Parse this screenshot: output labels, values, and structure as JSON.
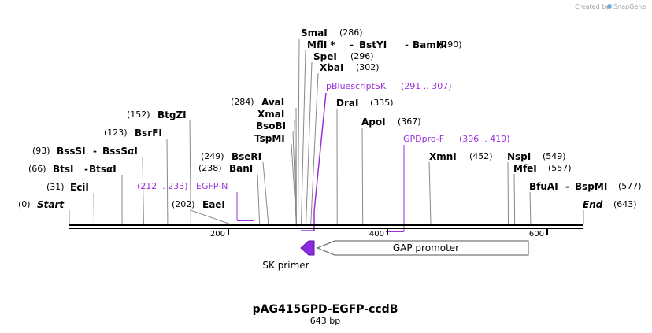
{
  "credit": {
    "prefix": "Created by",
    "brand": "SnapGene"
  },
  "map": {
    "name": "pAG415GPD-EGFP-ccdB",
    "length_label": "643 bp",
    "length_bp": 643
  },
  "ends": {
    "start": {
      "label": "Start",
      "pos_text": "(0)"
    },
    "end": {
      "label": "End",
      "pos_text": "(643)"
    }
  },
  "ticks": [
    {
      "bp": 200,
      "label": "200"
    },
    {
      "bp": 400,
      "label": "400"
    },
    {
      "bp": 600,
      "label": "600"
    }
  ],
  "sites": [
    {
      "name": "EciI",
      "pos_text": "(31)",
      "bp": 31
    },
    {
      "name": "BtsI",
      "name2": "BtsαI",
      "pos_text": "(66)",
      "bp": 66
    },
    {
      "name": "BssSI",
      "name2": "BssSαI",
      "pos_text": "(93)",
      "bp": 93
    },
    {
      "name": "BsrFI",
      "pos_text": "(123)",
      "bp": 123
    },
    {
      "name": "BtgZI",
      "pos_text": "(152)",
      "bp": 152
    },
    {
      "name": "EaeI",
      "pos_text": "(202)",
      "bp": 202
    },
    {
      "name": "BanI",
      "pos_text": "(238)",
      "bp": 238
    },
    {
      "name": "BseRI",
      "pos_text": "(249)",
      "bp": 249
    },
    {
      "name": "TspMI",
      "bp": 284
    },
    {
      "name": "BsoBI",
      "bp": 284
    },
    {
      "name": "XmaI",
      "bp": 284
    },
    {
      "name": "AvaI",
      "pos_text": "(284)",
      "bp": 284
    },
    {
      "name": "SmaI",
      "pos_text": "(286)",
      "bp": 286
    },
    {
      "name": "MflI *",
      "name2": "BstYI",
      "name3": "BamHI",
      "pos_text": "(290)",
      "bp": 290
    },
    {
      "name": "SpeI",
      "pos_text": "(296)",
      "bp": 296
    },
    {
      "name": "XbaI",
      "pos_text": "(302)",
      "bp": 302
    },
    {
      "name": "DraI",
      "pos_text": "(335)",
      "bp": 335
    },
    {
      "name": "ApoI",
      "pos_text": "(367)",
      "bp": 367
    },
    {
      "name": "XmnI",
      "pos_text": "(452)",
      "bp": 452
    },
    {
      "name": "NspI",
      "pos_text": "(549)",
      "bp": 549
    },
    {
      "name": "MfeI",
      "pos_text": "(557)",
      "bp": 557
    },
    {
      "name": "BfuAI",
      "name2": "BspMI",
      "pos_text": "(577)",
      "bp": 577
    }
  ],
  "primers": [
    {
      "name": "EGFP-N",
      "range_text": "(212 .. 233)",
      "start": 212,
      "end": 233
    },
    {
      "name": "pBluescriptSK",
      "range_text": "(291 .. 307)",
      "start": 291,
      "end": 307
    },
    {
      "name": "GPDpro-F",
      "range_text": "(396 .. 419)",
      "start": 396,
      "end": 419
    }
  ],
  "features": [
    {
      "name": "SK primer",
      "start": 291,
      "end": 307,
      "direction": "reverse",
      "color": "#8a2be2"
    },
    {
      "name": "GAP promoter",
      "start": 307,
      "end": 577,
      "direction": "reverse",
      "color": "#ffffff"
    }
  ],
  "colors": {
    "primer": "#9b30d9",
    "backbone": "#000000",
    "site_line": "#888888"
  }
}
